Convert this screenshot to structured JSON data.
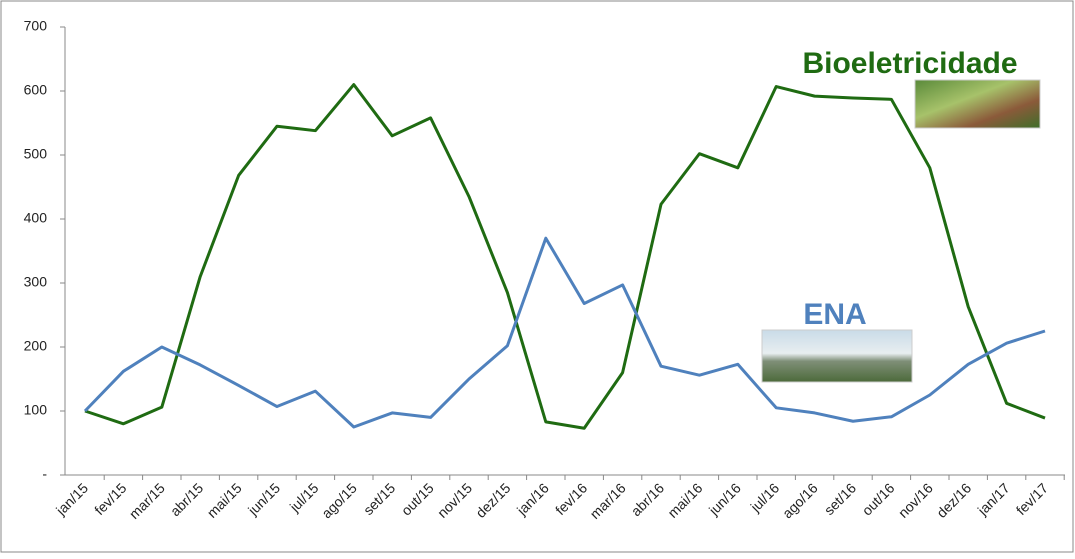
{
  "chart_data": {
    "type": "line",
    "categories": [
      "jan/15",
      "fev/15",
      "mar/15",
      "abr/15",
      "mai/15",
      "jun/15",
      "jul/15",
      "ago/15",
      "set/15",
      "out/15",
      "nov/15",
      "dez/15",
      "jan/16",
      "fev/16",
      "mar/16",
      "abr/16",
      "mai/16",
      "jun/16",
      "jul/16",
      "ago/16",
      "set/16",
      "out/16",
      "nov/16",
      "dez/16",
      "jan/17",
      "fev/17"
    ],
    "series": [
      {
        "name": "Bioeletricidade",
        "color": "#1f6b12",
        "values": [
          100,
          80,
          106,
          310,
          468,
          545,
          538,
          610,
          530,
          558,
          435,
          285,
          83,
          73,
          160,
          423,
          502,
          480,
          607,
          592,
          589,
          587,
          480,
          263,
          112,
          89
        ]
      },
      {
        "name": "ENA",
        "color": "#4f81bd",
        "values": [
          100,
          162,
          200,
          172,
          140,
          107,
          131,
          75,
          97,
          90,
          150,
          202,
          370,
          268,
          297,
          170,
          156,
          173,
          105,
          97,
          84,
          91,
          125,
          173,
          206,
          225
        ]
      }
    ],
    "ylim": [
      0,
      700
    ],
    "yticks": [
      {
        "value": 0,
        "label": "-"
      },
      100,
      200,
      300,
      400,
      500,
      600,
      700
    ],
    "grid": false
  }
}
